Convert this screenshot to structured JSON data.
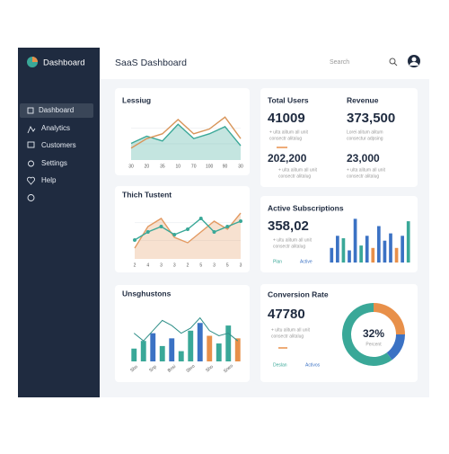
{
  "sidebar": {
    "brand": "Dashboard",
    "nav": [
      "Dashboard",
      "Analytics",
      "Customers",
      "Settings",
      "Help"
    ]
  },
  "header": {
    "title": "SaaS Dashboard",
    "search": "Search"
  },
  "cards": [
    {
      "title": "Lessiug",
      "chart": {
        "type": "line",
        "categories": [
          "30",
          "20",
          "35",
          "10",
          "70",
          "100",
          "90",
          "30"
        ],
        "ylim": [
          0,
          100
        ],
        "series": [
          {
            "color": "#3aa898",
            "fill": true,
            "values": [
              35,
              50,
              40,
              75,
              45,
              55,
              70,
              30
            ]
          },
          {
            "color": "#d8955a",
            "values": [
              25,
              45,
              55,
              85,
              55,
              65,
              90,
              45
            ]
          }
        ]
      }
    },
    {
      "title": "Thich Tustent",
      "chart": {
        "type": "line",
        "categories": [
          "2",
          "4",
          "3",
          "3",
          "2",
          "5",
          "3",
          "5",
          "3"
        ],
        "ylim": [
          0,
          100
        ],
        "series": [
          {
            "color": "#e39a62",
            "fill": true,
            "values": [
              20,
              60,
              75,
              40,
              30,
              50,
              70,
              55,
              85
            ]
          },
          {
            "color": "#3aa898",
            "dots": true,
            "values": [
              35,
              50,
              60,
              45,
              55,
              75,
              50,
              60,
              70
            ]
          }
        ]
      }
    },
    {
      "title": "Unsghustons",
      "chart": {
        "type": "bar",
        "ylim": [
          0,
          100
        ],
        "categories": [
          "Sbo",
          null,
          "Snp",
          null,
          "Bnsi",
          null,
          "Sbro",
          null,
          "Sho",
          null,
          "Sneo",
          null
        ],
        "values": [
          25,
          40,
          55,
          30,
          45,
          20,
          60,
          75,
          50,
          35,
          70,
          45
        ],
        "colors": [
          "#3aa898",
          "#3aa898",
          "#3b72c4",
          "#3aa898",
          "#3b72c4",
          "#3aa898",
          "#3aa898",
          "#3b72c4",
          "#e8904a",
          "#3aa898",
          "#3aa898",
          "#e8904a"
        ],
        "line": {
          "color": "#2f8f88",
          "values": [
            55,
            40,
            60,
            80,
            70,
            55,
            65,
            85,
            60,
            50,
            55,
            40
          ]
        }
      }
    }
  ],
  "stats": [
    {
      "title": "Total Users",
      "value": "41009",
      "note": [
        "+ ulta alitum all unit",
        "consectr alitalug"
      ],
      "value2": "202,200",
      "note2": [
        "+ ulta alitum all unit",
        "consectr alitalug"
      ]
    },
    {
      "title": "Revenue",
      "value": "373,500",
      "note": [
        "Lorei alitum alitum",
        "consectur adpsing"
      ],
      "value2": "23,000",
      "note2": [
        "+ ulta alitum all unit",
        "consectr alitalug"
      ]
    }
  ],
  "subscriptions": {
    "title": "Active Subscriptions",
    "value": "358,02",
    "note": [
      "+ ultu alitum all unit",
      "consectr alitalug"
    ],
    "legend": [
      "Plan",
      "Active"
    ],
    "chart": {
      "type": "bar",
      "ylim": [
        0,
        100
      ],
      "values": [
        30,
        55,
        50,
        25,
        90,
        35,
        55,
        30,
        75,
        45,
        60,
        30,
        55,
        85
      ],
      "colors": [
        "#3b72c4",
        "#3b72c4",
        "#3aa898",
        "#3b72c4",
        "#3b72c4",
        "#3aa898",
        "#3b72c4",
        "#e8904a",
        "#3b72c4",
        "#3b72c4",
        "#3b72c4",
        "#e8904a",
        "#3b72c4",
        "#3aa898"
      ]
    }
  },
  "conversion": {
    "title": "Conversion Rate",
    "value": "47780",
    "note": [
      "+ ultu alitum all unit",
      "consectr alitalug"
    ],
    "legend": [
      "Deslan",
      "Activos"
    ],
    "center": "32%",
    "center_note": "Percent",
    "chart": {
      "type": "donut",
      "values": [
        25,
        15,
        60
      ],
      "colors": [
        "#e8904a",
        "#3b72c4",
        "#3aa898"
      ]
    }
  }
}
